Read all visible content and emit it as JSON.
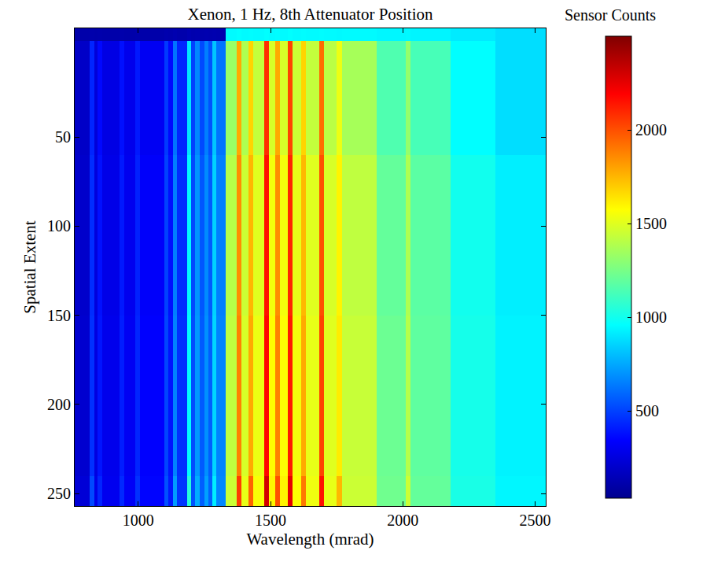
{
  "chart_data": {
    "type": "heatmap",
    "title": "Xenon, 1 Hz, 8th Attenuator Position",
    "x_label": "Wavelength (mrad)",
    "y_label": "Spatial Extent",
    "colorbar_title": "Sensor Counts",
    "x_edges": [
      760,
      815,
      835,
      845,
      865,
      930,
      948,
      990,
      1008,
      1100,
      1115,
      1132,
      1146,
      1185,
      1201,
      1215,
      1231,
      1250,
      1266,
      1280,
      1296,
      1330,
      1372,
      1390,
      1416,
      1434,
      1476,
      1494,
      1518,
      1536,
      1566,
      1584,
      1617,
      1635,
      1685,
      1703,
      1750,
      1770,
      1900,
      2012,
      2028,
      2180,
      2350,
      2540
    ],
    "y_edges": [
      -11,
      -4,
      60,
      150,
      240,
      257
    ],
    "z": [
      [
        110,
        115,
        110,
        115,
        110,
        115,
        110,
        115,
        110,
        120,
        115,
        125,
        115,
        130,
        120,
        125,
        120,
        125,
        120,
        125,
        120,
        950,
        960,
        950,
        955,
        950,
        960,
        950,
        955,
        950,
        960,
        950,
        955,
        950,
        955,
        950,
        945,
        950,
        940,
        945,
        935,
        910,
        880
      ],
      [
        190,
        430,
        240,
        360,
        270,
        380,
        290,
        400,
        310,
        480,
        360,
        620,
        430,
        900,
        500,
        670,
        520,
        650,
        540,
        820,
        620,
        1330,
        1780,
        1380,
        1680,
        1430,
        2080,
        1480,
        1780,
        1480,
        2030,
        1450,
        1680,
        1430,
        1930,
        1410,
        1530,
        1360,
        1150,
        1320,
        1130,
        960,
        880
      ],
      [
        200,
        450,
        250,
        380,
        280,
        400,
        300,
        420,
        330,
        500,
        380,
        650,
        450,
        950,
        520,
        700,
        550,
        680,
        560,
        850,
        650,
        1400,
        1850,
        1450,
        1750,
        1500,
        2150,
        1550,
        1850,
        1550,
        2100,
        1520,
        1750,
        1500,
        2000,
        1480,
        1600,
        1420,
        1200,
        1380,
        1180,
        1000,
        920
      ],
      [
        210,
        460,
        260,
        390,
        290,
        410,
        310,
        430,
        340,
        510,
        390,
        660,
        460,
        960,
        530,
        710,
        560,
        690,
        570,
        860,
        660,
        1420,
        1880,
        1480,
        1780,
        1530,
        2180,
        1580,
        1880,
        1570,
        2130,
        1550,
        1780,
        1520,
        2030,
        1500,
        1620,
        1440,
        1220,
        1400,
        1190,
        1010,
        930
      ],
      [
        230,
        520,
        280,
        430,
        300,
        440,
        320,
        460,
        350,
        540,
        400,
        720,
        470,
        1050,
        540,
        760,
        570,
        730,
        580,
        920,
        670,
        1450,
        2050,
        1520,
        1950,
        1560,
        2300,
        1600,
        2000,
        1600,
        2250,
        1570,
        1900,
        1540,
        2150,
        1520,
        1750,
        1450,
        1230,
        1450,
        1200,
        1020,
        940
      ]
    ],
    "xlim": [
      760,
      2540
    ],
    "xticks": [
      1000,
      1500,
      2000,
      2500
    ],
    "ylim": [
      257,
      -11
    ],
    "yticks": [
      50,
      100,
      150,
      200,
      250
    ],
    "zlim": [
      35,
      2500
    ],
    "zticks": [
      500,
      1000,
      1500,
      2000
    ],
    "grid": false
  }
}
